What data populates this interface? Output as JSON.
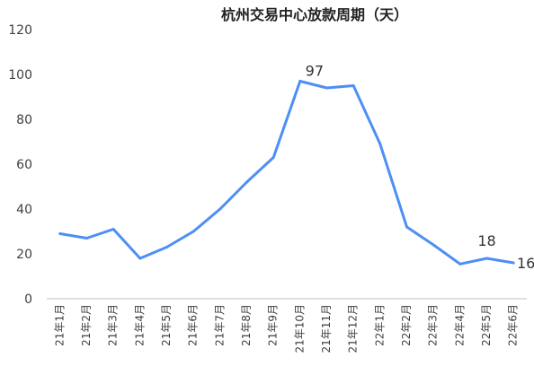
{
  "chart_data": {
    "type": "line",
    "title": "杭州交易中心放款周期（天）",
    "xlabel": "",
    "ylabel": "",
    "ylim": [
      0,
      120
    ],
    "y_ticks": [
      "0",
      "20",
      "40",
      "60",
      "80",
      "100",
      "120"
    ],
    "grid": false,
    "legend": "none",
    "categories": [
      "21年1月",
      "21年2月",
      "21年3月",
      "21年4月",
      "21年5月",
      "21年6月",
      "21年7月",
      "21年8月",
      "21年9月",
      "21年10月",
      "21年11月",
      "21年12月",
      "22年1月",
      "22年2月",
      "22年3月",
      "22年4月",
      "22年5月",
      "22年6月"
    ],
    "series": [
      {
        "color": "#4e8ff5",
        "values": [
          29,
          27,
          31,
          18,
          23,
          30,
          40,
          52,
          63,
          97,
          94,
          95,
          69,
          32,
          24,
          15.5,
          18,
          16
        ]
      }
    ],
    "data_labels": [
      {
        "index": 9,
        "text": "97"
      },
      {
        "index": 16,
        "text": "18"
      },
      {
        "index": 17,
        "text": "16"
      }
    ]
  }
}
